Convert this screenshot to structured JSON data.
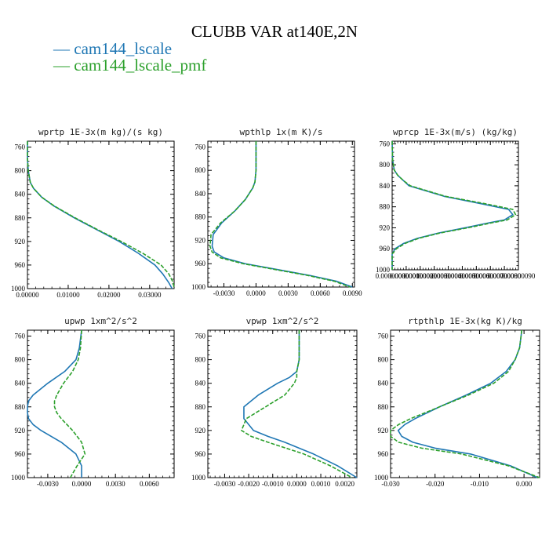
{
  "title": "CLUBB VAR at140E,2N",
  "legend": [
    "cam144_lscale",
    "cam144_lscale_pmf"
  ],
  "colors": {
    "cam144_lscale": "#1f77b4",
    "cam144_lscale_pmf": "#2ca02c"
  },
  "chart_data": [
    {
      "type": "line",
      "title": "wprtp  1E-3x(m kg)/(s kg)",
      "xlim": [
        0,
        0.036
      ],
      "xticks": [
        "0.00000",
        "0.01000",
        "0.02000",
        "0.03000"
      ],
      "xtick_values": [
        0,
        0.01,
        0.02,
        0.03
      ],
      "ylim": [
        1000,
        750
      ],
      "yticks": [
        "760",
        "800",
        "840",
        "880",
        "920",
        "960",
        "1000"
      ],
      "ytick_values": [
        760,
        800,
        840,
        880,
        920,
        960,
        1000
      ],
      "y": [
        750,
        780,
        800,
        820,
        830,
        845,
        860,
        880,
        900,
        920,
        940,
        960,
        975,
        990,
        1000
      ],
      "series": [
        {
          "name": "cam144_lscale",
          "values": [
            0.0,
            0.0,
            0.0002,
            0.0007,
            0.0015,
            0.0035,
            0.0065,
            0.0115,
            0.017,
            0.0225,
            0.0272,
            0.0313,
            0.0332,
            0.0347,
            0.0355
          ]
        },
        {
          "name": "cam144_lscale_pmf",
          "values": [
            0.0,
            0.0,
            0.0002,
            0.0007,
            0.0015,
            0.0035,
            0.0066,
            0.0117,
            0.0172,
            0.023,
            0.0283,
            0.0328,
            0.0347,
            0.0358,
            0.0362
          ]
        }
      ]
    },
    {
      "type": "line",
      "title": "wpthlp  1x(m K)/s",
      "xlim": [
        -0.0045,
        0.0092
      ],
      "xticks": [
        "-0.0030",
        "0.0000",
        "0.0030",
        "0.0060",
        "0.0090"
      ],
      "xtick_values": [
        -0.003,
        0,
        0.003,
        0.006,
        0.009
      ],
      "ylim": [
        1000,
        750
      ],
      "yticks": [
        "760",
        "800",
        "840",
        "880",
        "920",
        "960",
        "1000"
      ],
      "ytick_values": [
        760,
        800,
        840,
        880,
        920,
        960,
        1000
      ],
      "y": [
        750,
        780,
        800,
        820,
        830,
        850,
        870,
        890,
        910,
        930,
        940,
        950,
        960,
        970,
        980,
        990,
        1000
      ],
      "series": [
        {
          "name": "cam144_lscale",
          "values": [
            0.0,
            0.0,
            0.0,
            -0.0001,
            -0.0003,
            -0.001,
            -0.002,
            -0.0032,
            -0.004,
            -0.0041,
            -0.0039,
            -0.003,
            -0.001,
            0.002,
            0.005,
            0.0075,
            0.009
          ]
        },
        {
          "name": "cam144_lscale_pmf",
          "values": [
            0.0,
            0.0,
            0.0,
            -0.0001,
            -0.0003,
            -0.001,
            -0.002,
            -0.0033,
            -0.0042,
            -0.0043,
            -0.0041,
            -0.0033,
            -0.0012,
            0.0018,
            0.0048,
            0.0073,
            0.0088
          ]
        }
      ]
    },
    {
      "type": "line",
      "title": "wprcp  1E-3x(m/s) (kg/kg)",
      "xlim": [
        0,
        9e-07
      ],
      "xticks": [
        "0.00000000",
        "0.00000010",
        "0.00000020",
        "0.00000030",
        "0.00000040",
        "0.00000050",
        "0.00000060",
        "0.00000070",
        "0.00000080",
        "0.00000090"
      ],
      "xtick_values": [
        0,
        1e-07,
        2e-07,
        3e-07,
        4e-07,
        5e-07,
        6e-07,
        7e-07,
        8e-07,
        9e-07
      ],
      "ylim": [
        1000,
        755
      ],
      "yticks": [
        "760",
        "800",
        "840",
        "880",
        "920",
        "960",
        "1000"
      ],
      "ytick_values": [
        760,
        800,
        840,
        880,
        920,
        960,
        1000
      ],
      "y": [
        755,
        790,
        810,
        820,
        830,
        840,
        860,
        875,
        885,
        895,
        905,
        910,
        920,
        930,
        940,
        950,
        960,
        970,
        1000
      ],
      "series": [
        {
          "name": "cam144_lscale",
          "values": [
            0,
            3e-09,
            1.5e-08,
            4e-08,
            8e-08,
            1.2e-07,
            3.7e-07,
            6.5e-07,
            8.3e-07,
            8.6e-07,
            8e-07,
            7e-07,
            5.2e-07,
            3.3e-07,
            1.8e-07,
            8e-08,
            2e-08,
            0,
            0
          ]
        },
        {
          "name": "cam144_lscale_pmf",
          "values": [
            0,
            3e-09,
            1.5e-08,
            4e-08,
            8e-08,
            1.3e-07,
            3.8e-07,
            6.8e-07,
            8.6e-07,
            8.8e-07,
            8.2e-07,
            7.2e-07,
            5.4e-07,
            3.4e-07,
            1.9e-07,
            9e-08,
            3e-08,
            0,
            0
          ]
        }
      ]
    },
    {
      "type": "line",
      "title": "upwp  1xm^2/s^2",
      "xlim": [
        -0.0048,
        0.0082
      ],
      "xticks": [
        "-0.0030",
        "0.0000",
        "0.0030",
        "0.0060"
      ],
      "xtick_values": [
        -0.003,
        0,
        0.003,
        0.006
      ],
      "ylim": [
        1000,
        750
      ],
      "yticks": [
        "760",
        "800",
        "840",
        "880",
        "920",
        "960",
        "1000"
      ],
      "ytick_values": [
        760,
        800,
        840,
        880,
        920,
        960,
        1000
      ],
      "y": [
        750,
        780,
        800,
        820,
        840,
        860,
        870,
        880,
        890,
        900,
        910,
        920,
        940,
        960,
        980,
        1000
      ],
      "series": [
        {
          "name": "cam144_lscale",
          "values": [
            0.0,
            -0.0002,
            -0.0005,
            -0.0015,
            -0.003,
            -0.0043,
            -0.0047,
            -0.0048,
            -0.0048,
            -0.0047,
            -0.0043,
            -0.0036,
            -0.0018,
            -0.0005,
            0.0,
            0.0
          ]
        },
        {
          "name": "cam144_lscale_pmf",
          "values": [
            0.0,
            -0.0001,
            -0.0003,
            -0.0008,
            -0.0016,
            -0.0022,
            -0.0024,
            -0.0024,
            -0.0022,
            -0.0018,
            -0.0013,
            -0.0008,
            0.0,
            0.0003,
            -0.0004,
            -0.001
          ]
        }
      ]
    },
    {
      "type": "line",
      "title": "vpwp  1xm^2/s^2",
      "xlim": [
        -0.0037,
        0.0025
      ],
      "xticks": [
        "-0.0030",
        "-0.0020",
        "-0.0010",
        "0.0000",
        "0.0010",
        "0.0020"
      ],
      "xtick_values": [
        -0.003,
        -0.002,
        -0.001,
        0,
        0.001,
        0.002
      ],
      "ylim": [
        1000,
        750
      ],
      "yticks": [
        "760",
        "800",
        "840",
        "880",
        "920",
        "960",
        "1000"
      ],
      "ytick_values": [
        760,
        800,
        840,
        880,
        920,
        960,
        1000
      ],
      "y": [
        750,
        800,
        820,
        830,
        840,
        860,
        880,
        900,
        920,
        930,
        940,
        960,
        980,
        1000
      ],
      "series": [
        {
          "name": "cam144_lscale",
          "values": [
            0.0001,
            0.0001,
            0.0,
            -0.0003,
            -0.0008,
            -0.0016,
            -0.0022,
            -0.0022,
            -0.0018,
            -0.0012,
            -0.0005,
            0.0007,
            0.0017,
            0.0025
          ]
        },
        {
          "name": "cam144_lscale_pmf",
          "values": [
            0.0001,
            0.0001,
            0.0,
            0.0,
            -0.0001,
            -0.0005,
            -0.0013,
            -0.0021,
            -0.0023,
            -0.0019,
            -0.0012,
            0.0003,
            0.0014,
            0.0023
          ]
        }
      ]
    },
    {
      "type": "line",
      "title": "rtpthlp  1E-3x(kg K)/kg",
      "xlim": [
        -0.03,
        0.0035
      ],
      "xticks": [
        "-0.030",
        "-0.020",
        "-0.010",
        "0.000"
      ],
      "xtick_values": [
        -0.03,
        -0.02,
        -0.01,
        0
      ],
      "ylim": [
        1000,
        750
      ],
      "yticks": [
        "760",
        "800",
        "840",
        "880",
        "920",
        "960",
        "1000"
      ],
      "ytick_values": [
        760,
        800,
        840,
        880,
        920,
        960,
        1000
      ],
      "y": [
        750,
        780,
        800,
        820,
        840,
        860,
        880,
        900,
        910,
        920,
        930,
        940,
        950,
        960,
        980,
        1000
      ],
      "series": [
        {
          "name": "cam144_lscale",
          "values": [
            -0.0005,
            -0.001,
            -0.002,
            -0.004,
            -0.0075,
            -0.013,
            -0.019,
            -0.0245,
            -0.0268,
            -0.0283,
            -0.0275,
            -0.025,
            -0.02,
            -0.012,
            -0.003,
            0.003
          ]
        },
        {
          "name": "cam144_lscale_pmf",
          "values": [
            -0.0005,
            -0.001,
            -0.002,
            -0.0035,
            -0.0068,
            -0.0125,
            -0.019,
            -0.0255,
            -0.0282,
            -0.03,
            -0.03,
            -0.0282,
            -0.023,
            -0.014,
            -0.0035,
            0.0035
          ]
        }
      ]
    }
  ]
}
